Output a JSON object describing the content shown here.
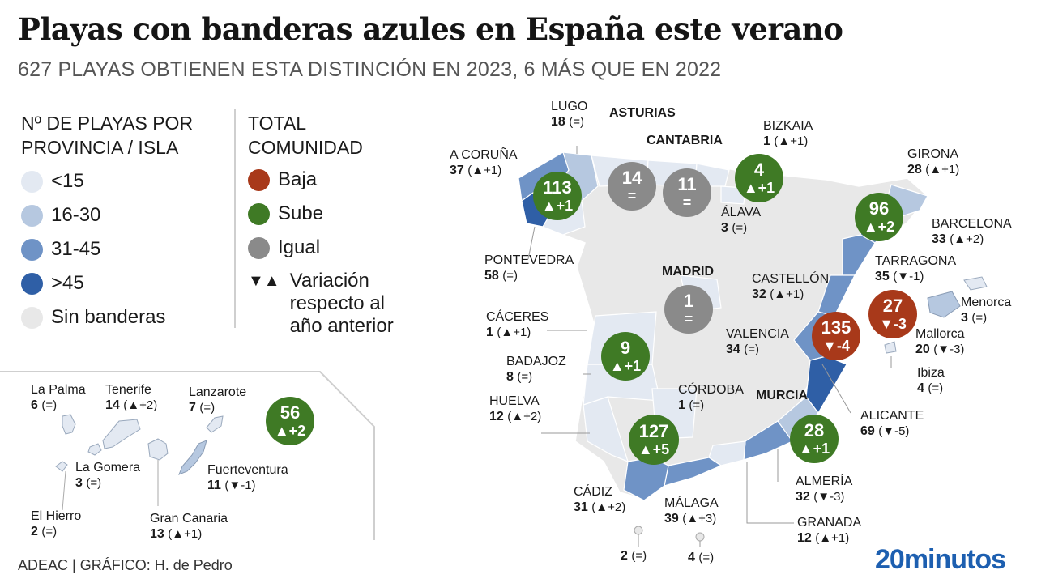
{
  "title": "Playas con banderas azules en España este verano",
  "subtitle": "627 PLAYAS OBTIENEN ESTA DISTINCIÓN EN 2023, 6 MÁS QUE EN 2022",
  "colors": {
    "lt15": "#e3e9f2",
    "b16_30": "#b6c8e0",
    "b31_45": "#6f93c6",
    "gt45": "#2f5fa6",
    "none": "#e8e8e8",
    "baja": "#a8391a",
    "sube": "#3f7a25",
    "igual": "#8a8a8a"
  },
  "legend": {
    "province_title_1": "Nº DE PLAYAS POR",
    "province_title_2": "PROVINCIA / ISLA",
    "items": [
      "<15",
      "16-30",
      "31-45",
      ">45",
      "Sin banderas"
    ],
    "community_title_1": "TOTAL",
    "community_title_2": "COMUNIDAD",
    "baja": "Baja",
    "sube": "Sube",
    "igual": "Igual",
    "variation_symbol": "▼▲",
    "variation_1": "Variación",
    "variation_2": "respecto al",
    "variation_3": "año anterior"
  },
  "communities": {
    "asturias": "ASTURIAS",
    "cantabria": "CANTABRIA",
    "madrid": "MADRID",
    "murcia": "MURCIA"
  },
  "bubbles": {
    "galicia": {
      "n": "113",
      "v": "▲+1"
    },
    "asturias": {
      "n": "14",
      "v": "="
    },
    "cantabria": {
      "n": "11",
      "v": "="
    },
    "pais_vasco": {
      "n": "4",
      "v": "▲+1"
    },
    "cataluna": {
      "n": "96",
      "v": "▲+2"
    },
    "madrid": {
      "n": "1",
      "v": "="
    },
    "valencia": {
      "n": "135",
      "v": "▼-4"
    },
    "baleares": {
      "n": "27",
      "v": "▼-3"
    },
    "extremadura": {
      "n": "9",
      "v": "▲+1"
    },
    "andalucia": {
      "n": "127",
      "v": "▲+5"
    },
    "murcia": {
      "n": "28",
      "v": "▲+1"
    },
    "canarias": {
      "n": "56",
      "v": "▲+2"
    }
  },
  "provinces": {
    "lugo": {
      "name": "LUGO",
      "val": "18",
      "var": "(=)"
    },
    "coruna": {
      "name": "A CORUÑA",
      "val": "37",
      "var": "(▲+1)"
    },
    "pontevedra": {
      "name": "PONTEVEDRA",
      "val": "58",
      "var": "(=)"
    },
    "bizkaia": {
      "name": "BIZKAIA",
      "val": "1",
      "var": "(▲+1)"
    },
    "alava": {
      "name": "ÁLAVA",
      "val": "3",
      "var": "(=)"
    },
    "girona": {
      "name": "GIRONA",
      "val": "28",
      "var": "(▲+1)"
    },
    "barcelona": {
      "name": "BARCELONA",
      "val": "33",
      "var": "(▲+2)"
    },
    "tarragona": {
      "name": "TARRAGONA",
      "val": "35",
      "var": "(▼-1)"
    },
    "castellon": {
      "name": "CASTELLÓN",
      "val": "32",
      "var": "(▲+1)"
    },
    "menorca": {
      "name": "Menorca",
      "val": "3",
      "var": "(=)"
    },
    "mallorca": {
      "name": "Mallorca",
      "val": "20",
      "var": "(▼-3)"
    },
    "ibiza": {
      "name": "Ibiza",
      "val": "4",
      "var": "(=)"
    },
    "valencia": {
      "name": "VALENCIA",
      "val": "34",
      "var": "(=)"
    },
    "alicante": {
      "name": "ALICANTE",
      "val": "69",
      "var": "(▼-5)"
    },
    "caceres": {
      "name": "CÁCERES",
      "val": "1",
      "var": "(▲+1)"
    },
    "badajoz": {
      "name": "BADAJOZ",
      "val": "8",
      "var": "(=)"
    },
    "huelva": {
      "name": "HUELVA",
      "val": "12",
      "var": "(▲+2)"
    },
    "cordoba": {
      "name": "CÓRDOBA",
      "val": "1",
      "var": "(=)"
    },
    "cadiz": {
      "name": "CÁDIZ",
      "val": "31",
      "var": "(▲+2)"
    },
    "malaga": {
      "name": "MÁLAGA",
      "val": "39",
      "var": "(▲+3)"
    },
    "almeria": {
      "name": "ALMERÍA",
      "val": "32",
      "var": "(▼-3)"
    },
    "granada": {
      "name": "GRANADA",
      "val": "12",
      "var": "(▲+1)"
    },
    "ceuta": {
      "val": "2",
      "var": "(=)"
    },
    "melilla": {
      "val": "4",
      "var": "(=)"
    }
  },
  "islands": {
    "la_palma": {
      "name": "La Palma",
      "val": "6",
      "var": "(=)"
    },
    "tenerife": {
      "name": "Tenerife",
      "val": "14",
      "var": "(▲+2)"
    },
    "lanzarote": {
      "name": "Lanzarote",
      "val": "7",
      "var": "(=)"
    },
    "la_gomera": {
      "name": "La Gomera",
      "val": "3",
      "var": "(=)"
    },
    "fuerteventura": {
      "name": "Fuerteventura",
      "val": "11",
      "var": "(▼-1)"
    },
    "el_hierro": {
      "name": "El Hierro",
      "val": "2",
      "var": "(=)"
    },
    "gran_canaria": {
      "name": "Gran Canaria",
      "val": "13",
      "var": "(▲+1)"
    }
  },
  "source": "ADEAC  |  GRÁFICO: H. de Pedro",
  "brand": "20minutos"
}
